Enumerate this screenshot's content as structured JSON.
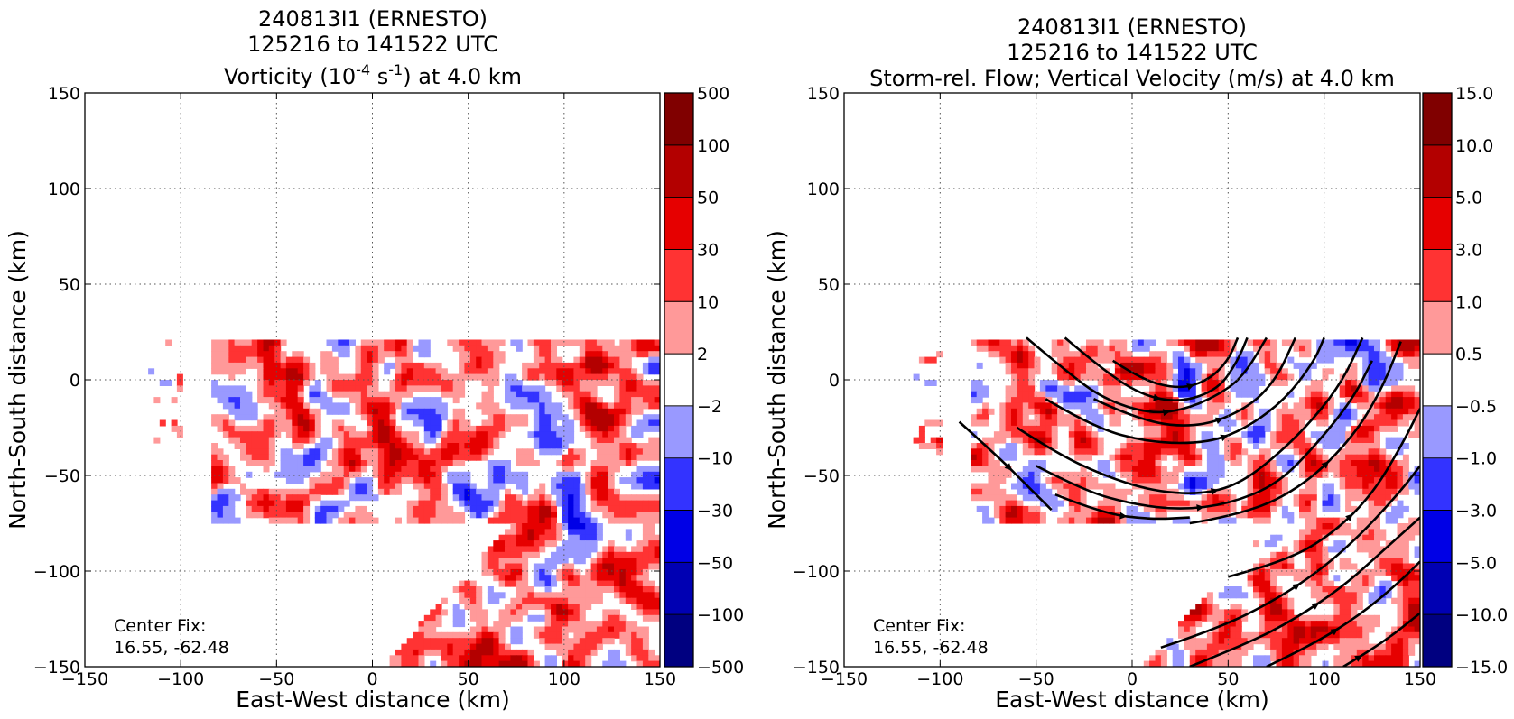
{
  "chart_data": [
    {
      "type": "heatmap",
      "title_lines": [
        "240813I1 (ERNESTO)",
        "125216 to 141522 UTC"
      ],
      "title_var": {
        "prefix": "Vorticity (10",
        "sup1": "-4",
        "mid": " s",
        "sup2": "-1",
        "suffix": ") at 4.0 km"
      },
      "xlabel": "East-West distance (km)",
      "ylabel": "North-South distance (km)",
      "xlim": [
        -150,
        150
      ],
      "ylim": [
        -150,
        150
      ],
      "xticks": [
        -150,
        -100,
        -50,
        0,
        50,
        100,
        150
      ],
      "yticks": [
        -150,
        -100,
        -50,
        0,
        50,
        100,
        150
      ],
      "xtick_labels": [
        "−150",
        "−100",
        "−50",
        "0",
        "50",
        "100",
        "150"
      ],
      "ytick_labels": [
        "−150",
        "−100",
        "−50",
        "0",
        "50",
        "100",
        "150"
      ],
      "grid": true,
      "annotation": [
        "Center Fix:",
        "16.55, -62.48"
      ],
      "colorbar": {
        "levels": [
          -500,
          -100,
          -50,
          -30,
          -10,
          -2,
          2,
          10,
          30,
          50,
          100,
          500
        ],
        "labels": [
          "−500",
          "−100",
          "−50",
          "−30",
          "−10",
          "−2",
          "2",
          "10",
          "30",
          "50",
          "100",
          "500"
        ],
        "colors": [
          "#000080",
          "#0000b3",
          "#0000e6",
          "#3333ff",
          "#9999ff",
          "#ffffff",
          "#ff9999",
          "#ff3333",
          "#e60000",
          "#b30000",
          "#800000"
        ]
      },
      "regions": [
        {
          "name": "center",
          "x": [
            -85,
            150
          ],
          "y": [
            -75,
            22
          ],
          "density": 0.7
        },
        {
          "name": "west",
          "x": [
            -150,
            -100
          ],
          "y": [
            -40,
            22
          ],
          "density": 0.25
        },
        {
          "name": "southeast",
          "x": [
            5,
            150
          ],
          "y": [
            -150,
            -75
          ],
          "density": 0.75
        }
      ]
    },
    {
      "type": "heatmap",
      "title_lines": [
        "240813I1 (ERNESTO)",
        "125216 to 141522 UTC"
      ],
      "title_var_text": "Storm-rel. Flow; Vertical Velocity (m/s) at 4.0 km",
      "xlabel": "East-West distance (km)",
      "ylabel": "North-South distance (km)",
      "xlim": [
        -150,
        150
      ],
      "ylim": [
        -150,
        150
      ],
      "xticks": [
        -150,
        -100,
        -50,
        0,
        50,
        100,
        150
      ],
      "yticks": [
        -150,
        -100,
        -50,
        0,
        50,
        100,
        150
      ],
      "xtick_labels": [
        "−150",
        "−100",
        "−50",
        "0",
        "50",
        "100",
        "150"
      ],
      "ytick_labels": [
        "−150",
        "−100",
        "−50",
        "0",
        "50",
        "100",
        "150"
      ],
      "grid": true,
      "annotation": [
        "Center Fix:",
        "16.55, -62.48"
      ],
      "colorbar": {
        "levels": [
          -15,
          -10,
          -5,
          -3,
          -1,
          -0.5,
          0.5,
          1,
          3,
          5,
          10,
          15
        ],
        "labels": [
          "−15.0",
          "−10.0",
          "−5.0",
          "−3.0",
          "−1.0",
          "−0.5",
          "0.5",
          "1.0",
          "3.0",
          "5.0",
          "10.0",
          "15.0"
        ],
        "colors": [
          "#000080",
          "#0000b3",
          "#0000e6",
          "#3333ff",
          "#9999ff",
          "#ffffff",
          "#ff9999",
          "#ff3333",
          "#e60000",
          "#b30000",
          "#800000"
        ]
      },
      "regions": [
        {
          "name": "center",
          "x": [
            -85,
            150
          ],
          "y": [
            -75,
            22
          ],
          "density": 0.55
        },
        {
          "name": "west",
          "x": [
            -150,
            -100
          ],
          "y": [
            -40,
            22
          ],
          "density": 0.25
        },
        {
          "name": "southeast",
          "x": [
            5,
            150
          ],
          "y": [
            -150,
            -75
          ],
          "density": 0.6
        }
      ],
      "streamlines": [
        [
          [
            -55,
            22
          ],
          [
            -35,
            5
          ],
          [
            -15,
            -10
          ],
          [
            10,
            -18
          ],
          [
            30,
            -15
          ],
          [
            50,
            -5
          ],
          [
            60,
            5
          ],
          [
            70,
            22
          ]
        ],
        [
          [
            -35,
            22
          ],
          [
            -15,
            5
          ],
          [
            5,
            -8
          ],
          [
            25,
            -12
          ],
          [
            45,
            -5
          ],
          [
            55,
            10
          ],
          [
            60,
            22
          ]
        ],
        [
          [
            -10,
            10
          ],
          [
            5,
            0
          ],
          [
            25,
            -5
          ],
          [
            40,
            0
          ],
          [
            50,
            10
          ],
          [
            55,
            22
          ]
        ],
        [
          [
            -90,
            -22
          ],
          [
            -70,
            -40
          ],
          [
            -55,
            -55
          ],
          [
            -42,
            -68
          ]
        ],
        [
          [
            -60,
            -25
          ],
          [
            -40,
            -38
          ],
          [
            -15,
            -50
          ],
          [
            10,
            -58
          ],
          [
            35,
            -60
          ],
          [
            55,
            -55
          ],
          [
            75,
            -40
          ],
          [
            95,
            -20
          ],
          [
            110,
            0
          ],
          [
            120,
            22
          ]
        ],
        [
          [
            -50,
            -45
          ],
          [
            -25,
            -58
          ],
          [
            0,
            -65
          ],
          [
            25,
            -68
          ],
          [
            50,
            -65
          ],
          [
            75,
            -55
          ],
          [
            95,
            -35
          ],
          [
            115,
            -10
          ],
          [
            125,
            10
          ]
        ],
        [
          [
            -40,
            -60
          ],
          [
            -15,
            -70
          ],
          [
            10,
            -73
          ],
          [
            30,
            -72
          ]
        ],
        [
          [
            -45,
            -10
          ],
          [
            -20,
            -25
          ],
          [
            10,
            -33
          ],
          [
            40,
            -33
          ],
          [
            60,
            -25
          ],
          [
            80,
            -10
          ],
          [
            95,
            10
          ],
          [
            100,
            22
          ]
        ],
        [
          [
            -20,
            -10
          ],
          [
            5,
            -22
          ],
          [
            35,
            -25
          ],
          [
            60,
            -15
          ],
          [
            75,
            0
          ],
          [
            85,
            22
          ]
        ],
        [
          [
            30,
            -75
          ],
          [
            60,
            -70
          ],
          [
            90,
            -55
          ],
          [
            115,
            -30
          ],
          [
            130,
            -5
          ],
          [
            140,
            20
          ]
        ],
        [
          [
            50,
            -103
          ],
          [
            80,
            -95
          ],
          [
            105,
            -80
          ],
          [
            125,
            -60
          ],
          [
            140,
            -35
          ],
          [
            150,
            -15
          ]
        ],
        [
          [
            15,
            -140
          ],
          [
            45,
            -130
          ],
          [
            75,
            -115
          ],
          [
            100,
            -98
          ],
          [
            120,
            -80
          ],
          [
            140,
            -58
          ],
          [
            150,
            -45
          ]
        ],
        [
          [
            30,
            -150
          ],
          [
            60,
            -138
          ],
          [
            85,
            -125
          ],
          [
            110,
            -108
          ],
          [
            130,
            -90
          ],
          [
            150,
            -72
          ]
        ],
        [
          [
            70,
            -150
          ],
          [
            95,
            -138
          ],
          [
            120,
            -122
          ],
          [
            140,
            -105
          ],
          [
            150,
            -95
          ]
        ],
        [
          [
            110,
            -150
          ],
          [
            130,
            -138
          ],
          [
            150,
            -122
          ]
        ]
      ]
    }
  ]
}
